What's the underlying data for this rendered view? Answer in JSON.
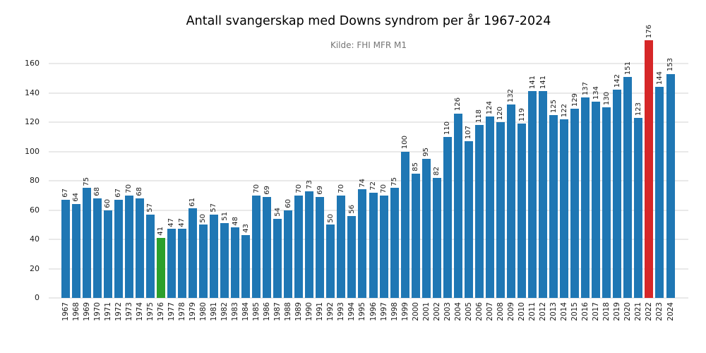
{
  "chart": {
    "title": "Antall svangerskap med Downs syndrom per år 1967-2024",
    "subtitle": "Kilde: FHI MFR M1"
  },
  "chart_data": {
    "type": "bar",
    "title": "Antall svangerskap med Downs syndrom per år 1967-2024",
    "subtitle": "Kilde: FHI MFR M1",
    "xlabel": "",
    "ylabel": "",
    "ylim": [
      0,
      180
    ],
    "yticks": [
      0,
      20,
      40,
      60,
      80,
      100,
      120,
      140,
      160
    ],
    "grid": true,
    "legend_position": "none",
    "bar_label_rotation": 90,
    "xtick_rotation": 90,
    "categories": [
      "1967",
      "1968",
      "1969",
      "1970",
      "1971",
      "1972",
      "1973",
      "1974",
      "1975",
      "1976",
      "1977",
      "1978",
      "1979",
      "1980",
      "1981",
      "1982",
      "1983",
      "1984",
      "1985",
      "1986",
      "1987",
      "1988",
      "1989",
      "1990",
      "1991",
      "1992",
      "1993",
      "1994",
      "1995",
      "1996",
      "1997",
      "1998",
      "1999",
      "2000",
      "2001",
      "2002",
      "2003",
      "2004",
      "2005",
      "2006",
      "2007",
      "2008",
      "2009",
      "2010",
      "2011",
      "2012",
      "2013",
      "2014",
      "2015",
      "2016",
      "2017",
      "2018",
      "2019",
      "2020",
      "2021",
      "2022",
      "2023",
      "2024"
    ],
    "values": [
      67,
      64,
      75,
      68,
      60,
      67,
      70,
      68,
      57,
      41,
      47,
      47,
      61,
      50,
      57,
      51,
      48,
      43,
      70,
      69,
      54,
      60,
      70,
      73,
      69,
      50,
      70,
      56,
      74,
      72,
      70,
      75,
      100,
      85,
      95,
      82,
      110,
      126,
      107,
      118,
      124,
      120,
      132,
      119,
      141,
      141,
      125,
      122,
      129,
      137,
      134,
      130,
      142,
      151,
      123,
      176,
      144,
      153
    ],
    "colors": {
      "default_bar": "#1f77b4",
      "highlight_green": "#2ca02c",
      "highlight_red": "#d62728",
      "gridline": "#e9e9e9",
      "text": "#1a1a1a",
      "subtitle_text": "#757575"
    },
    "highlighted_categories": {
      "green": "1976",
      "red": "2022"
    }
  }
}
